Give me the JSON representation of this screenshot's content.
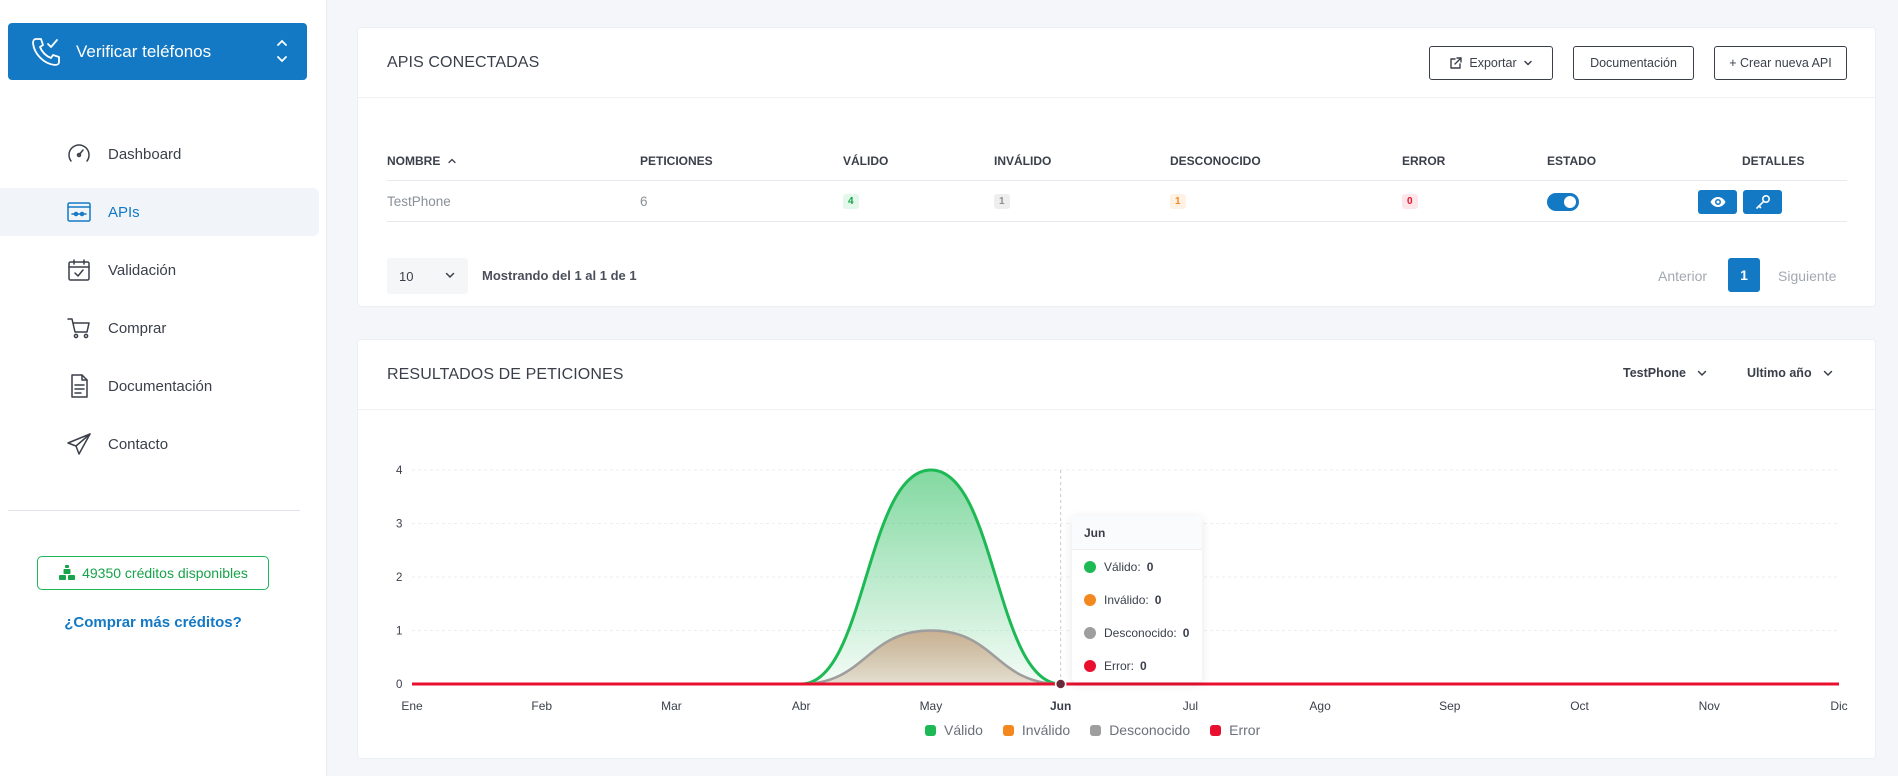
{
  "sidebar": {
    "brand_title": "Verificar teléfonos",
    "items": [
      {
        "label": "Dashboard",
        "icon": "speedometer-icon",
        "active": false
      },
      {
        "label": "APIs",
        "icon": "api-icon",
        "active": true
      },
      {
        "label": "Validación",
        "icon": "calendar-check-icon",
        "active": false
      },
      {
        "label": "Comprar",
        "icon": "cart-icon",
        "active": false
      },
      {
        "label": "Documentación",
        "icon": "document-icon",
        "active": false
      },
      {
        "label": "Contacto",
        "icon": "paper-plane-icon",
        "active": false
      }
    ],
    "credits": "49350 créditos disponibles",
    "buy_more": "¿Comprar más créditos?"
  },
  "apis_card": {
    "title": "APIS CONECTADAS",
    "export_label": "Exportar",
    "docs_label": "Documentación",
    "create_label": "+ Crear nueva API",
    "columns": [
      "NOMBRE",
      "PETICIONES",
      "VÁLIDO",
      "INVÁLIDO",
      "DESCONOCIDO",
      "ERROR",
      "ESTADO",
      "DETALLES"
    ],
    "rows": [
      {
        "name": "TestPhone",
        "requests": "6",
        "valid": "4",
        "invalid": "1",
        "unknown": "1",
        "error": "0",
        "enabled": true
      }
    ],
    "page_size": "10",
    "showing": "Mostrando del 1 al 1 de 1",
    "prev": "Anterior",
    "page": "1",
    "next": "Siguiente"
  },
  "results_card": {
    "title": "RESULTADOS DE PETICIONES",
    "api_filter": "TestPhone",
    "period_filter": "Ultimo año"
  },
  "colors": {
    "primary": "#1479c4",
    "valid": "#1db954",
    "invalid": "#f5871f",
    "unknown": "#9e9e9e",
    "error": "#e8102e"
  },
  "chart_data": {
    "type": "area",
    "categories": [
      "Ene",
      "Feb",
      "Mar",
      "Abr",
      "May",
      "Jun",
      "Jul",
      "Ago",
      "Sep",
      "Oct",
      "Nov",
      "Dic"
    ],
    "ylim": [
      0,
      4
    ],
    "yticks": [
      "0",
      "1",
      "2",
      "3",
      "4"
    ],
    "series": [
      {
        "name": "Válido",
        "values": [
          0,
          0,
          0,
          0,
          4,
          0,
          0,
          0,
          0,
          0,
          0,
          0
        ]
      },
      {
        "name": "Inválido",
        "values": [
          0,
          0,
          0,
          0,
          1,
          0,
          0,
          0,
          0,
          0,
          0,
          0
        ]
      },
      {
        "name": "Desconocido",
        "values": [
          0,
          0,
          0,
          0,
          1,
          0,
          0,
          0,
          0,
          0,
          0,
          0
        ]
      },
      {
        "name": "Error",
        "values": [
          0,
          0,
          0,
          0,
          0,
          0,
          0,
          0,
          0,
          0,
          0,
          0
        ]
      }
    ],
    "legend_position": "bottom",
    "grid": true,
    "tooltip": {
      "title": "Jun",
      "rows": [
        {
          "label": "Válido:",
          "value": "0"
        },
        {
          "label": "Inválido:",
          "value": "0"
        },
        {
          "label": "Desconocido:",
          "value": "0"
        },
        {
          "label": "Error:",
          "value": "0"
        }
      ]
    }
  }
}
